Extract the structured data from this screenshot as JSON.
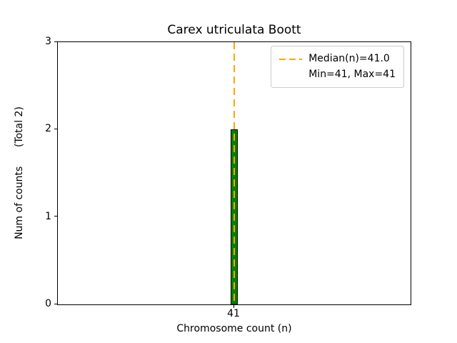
{
  "chart_data": {
    "type": "bar",
    "title": "Carex utriculata Boott",
    "xlabel": "Chromosome count (n)",
    "ylabel": "Num of counts      (Total 2)",
    "categories": [
      41
    ],
    "values": [
      2
    ],
    "ylim": [
      0,
      3
    ],
    "yticks": [
      0,
      1,
      2,
      3
    ],
    "xticks": [
      41
    ],
    "median": 41.0,
    "min": 41,
    "max": 41,
    "total_counts": 2,
    "grid": false,
    "legend_position": "upper right",
    "legend_labels": [
      "Median(n)=41.0",
      "Min=41, Max=41"
    ],
    "bar_color": "#008000",
    "bar_edge_color": "#000000",
    "median_line_color": "#FFA500"
  }
}
